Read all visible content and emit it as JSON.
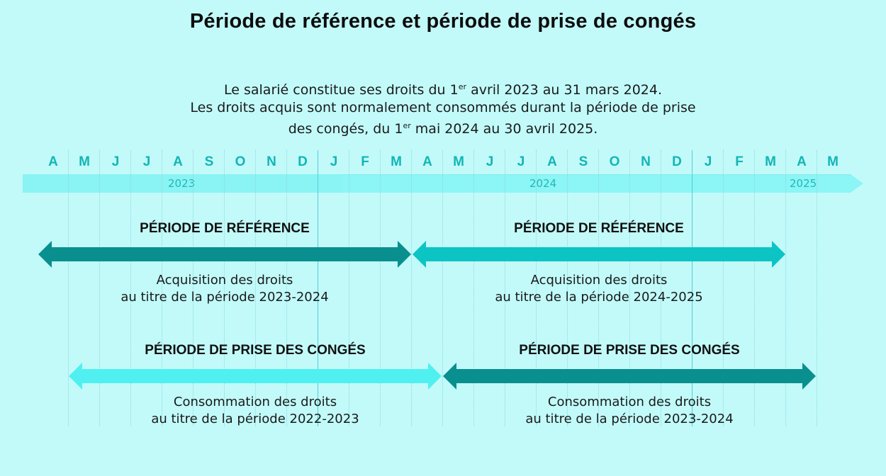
{
  "title": "Période de référence et période de prise de congés",
  "intro": {
    "line1_pre": "Le salarié constitue ses droits du 1",
    "line1_sup": "er",
    "line1_post": " avril 2023 au 31 mars 2024.",
    "line2": "Les droits acquis sont normalement consommés durant la période de prise",
    "line3_pre": "des congés, du 1",
    "line3_sup": "er",
    "line3_post": " mai 2024 au 30 avril 2025."
  },
  "timeline": {
    "months": [
      "A",
      "M",
      "J",
      "J",
      "A",
      "S",
      "O",
      "N",
      "D",
      "J",
      "F",
      "M",
      "A",
      "M",
      "J",
      "J",
      "A",
      "S",
      "O",
      "N",
      "D",
      "J",
      "F",
      "M",
      "A",
      "M"
    ],
    "years": [
      "2023",
      "2024",
      "2025"
    ]
  },
  "periods": [
    {
      "heading": "PÉRIODE DE RÉFÉRENCE",
      "desc_line1": "Acquisition des droits",
      "desc_line2": "au titre de la période 2023-2024",
      "color": "#0A8F8F"
    },
    {
      "heading": "PÉRIODE DE RÉFÉRENCE",
      "desc_line1": "Acquisition des droits",
      "desc_line2": "au titre de la période 2024-2025",
      "color": "#0CC4C4"
    },
    {
      "heading": "PÉRIODE DE PRISE DES CONGÉS",
      "desc_line1": "Consommation des droits",
      "desc_line2": "au titre de la période 2022-2023",
      "color": "#50F0F0"
    },
    {
      "heading": "PÉRIODE DE PRISE DES CONGÉS",
      "desc_line1": "Consommation des droits",
      "desc_line2": "au titre de la période 2023-2024",
      "color": "#0A8F8F"
    }
  ],
  "colors": {
    "background": "#C2FAFA",
    "band": "#8CF5F5",
    "month_label": "#13B5B5",
    "dark_arrow": "#0A8F8F",
    "mid_arrow": "#0CC4C4",
    "light_arrow": "#50F0F0"
  }
}
